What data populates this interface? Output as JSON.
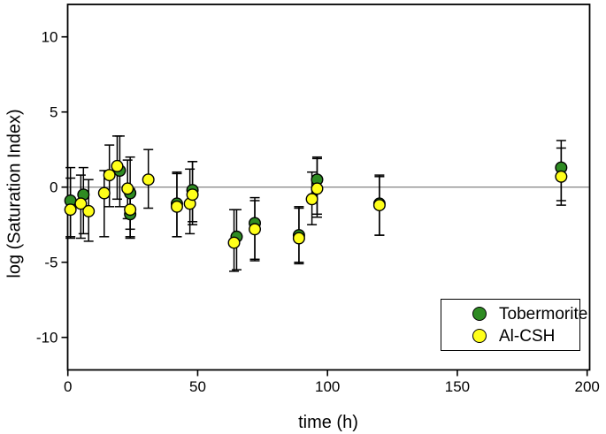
{
  "figure": {
    "background": "#ffffff",
    "frame_color": "#000000",
    "reference_line_color": "#8c8c8c"
  },
  "chart_data": {
    "type": "scatter",
    "title": "",
    "xlabel": "time (h)",
    "ylabel": "log (Saturation Index)",
    "xlim": [
      0,
      200
    ],
    "ylim": [
      -12,
      12
    ],
    "xticks": [
      0,
      50,
      100,
      150,
      200
    ],
    "yticks": [
      -10,
      -5,
      0,
      5,
      10
    ],
    "grid": false,
    "reference_line_y": 0,
    "error_bars": true,
    "legend": {
      "position": "lower-right",
      "border": true,
      "entries": [
        {
          "label": "Tobermorite",
          "color": "#2e8b22",
          "marker": "circle"
        },
        {
          "label": "Al-CSH",
          "color": "#ffff1a",
          "marker": "circle"
        }
      ]
    },
    "series": [
      {
        "name": "Tobermorite",
        "marker": "circle",
        "marker_color": "#2e8b22",
        "marker_edge_color": "#000000",
        "points": [
          {
            "x": 1,
            "y": -0.9,
            "eu": 2.2,
            "ed": 2.4
          },
          {
            "x": 6,
            "y": -0.5,
            "eu": 1.8,
            "ed": 2.6
          },
          {
            "x": 20,
            "y": 1.1,
            "eu": 2.3,
            "ed": 2.4
          },
          {
            "x": 24,
            "y": -0.4,
            "eu": 2.4,
            "ed": 2.4
          },
          {
            "x": 24,
            "y": -1.8,
            "eu": 1.6,
            "ed": 1.6
          },
          {
            "x": 42,
            "y": -1.1,
            "eu": 2.1,
            "ed": 2.2
          },
          {
            "x": 48,
            "y": -0.2,
            "eu": 1.9,
            "ed": 2.3
          },
          {
            "x": 65,
            "y": -3.3,
            "eu": 1.8,
            "ed": 2.2
          },
          {
            "x": 72,
            "y": -2.4,
            "eu": 1.7,
            "ed": 2.4
          },
          {
            "x": 89,
            "y": -3.2,
            "eu": 1.9,
            "ed": 1.8
          },
          {
            "x": 96,
            "y": 0.5,
            "eu": 1.5,
            "ed": 2.3
          },
          {
            "x": 120,
            "y": -1.1,
            "eu": 1.9,
            "ed": 2.1
          },
          {
            "x": 190,
            "y": 1.3,
            "eu": 1.8,
            "ed": 2.2
          }
        ]
      },
      {
        "name": "Al-CSH",
        "marker": "circle",
        "marker_color": "#ffff1a",
        "marker_edge_color": "#000000",
        "points": [
          {
            "x": 1,
            "y": -1.5,
            "eu": 2.1,
            "ed": 1.9
          },
          {
            "x": 5,
            "y": -1.1,
            "eu": 1.9,
            "ed": 2.3
          },
          {
            "x": 8,
            "y": -1.6,
            "eu": 2.1,
            "ed": 2.0
          },
          {
            "x": 14,
            "y": -0.4,
            "eu": 1.5,
            "ed": 2.9
          },
          {
            "x": 16,
            "y": 0.8,
            "eu": 2.0,
            "ed": 2.1
          },
          {
            "x": 19,
            "y": 1.4,
            "eu": 2.0,
            "ed": 2.2
          },
          {
            "x": 23,
            "y": -0.1,
            "eu": 1.9,
            "ed": 2.0
          },
          {
            "x": 24,
            "y": -1.5,
            "eu": 1.4,
            "ed": 1.8
          },
          {
            "x": 31,
            "y": 0.5,
            "eu": 2.0,
            "ed": 1.9
          },
          {
            "x": 42,
            "y": -1.3,
            "eu": 2.2,
            "ed": 2.0
          },
          {
            "x": 47,
            "y": -1.1,
            "eu": 2.3,
            "ed": 2.0
          },
          {
            "x": 48,
            "y": -0.5,
            "eu": 2.2,
            "ed": 1.8
          },
          {
            "x": 64,
            "y": -3.7,
            "eu": 2.2,
            "ed": 1.9
          },
          {
            "x": 72,
            "y": -2.8,
            "eu": 1.9,
            "ed": 2.1
          },
          {
            "x": 89,
            "y": -3.4,
            "eu": 2.0,
            "ed": 1.7
          },
          {
            "x": 94,
            "y": -0.8,
            "eu": 1.8,
            "ed": 1.7
          },
          {
            "x": 96,
            "y": -0.1,
            "eu": 2.0,
            "ed": 1.9
          },
          {
            "x": 120,
            "y": -1.2,
            "eu": 1.9,
            "ed": 2.0
          },
          {
            "x": 190,
            "y": 0.7,
            "eu": 1.9,
            "ed": 1.9
          }
        ]
      }
    ]
  }
}
